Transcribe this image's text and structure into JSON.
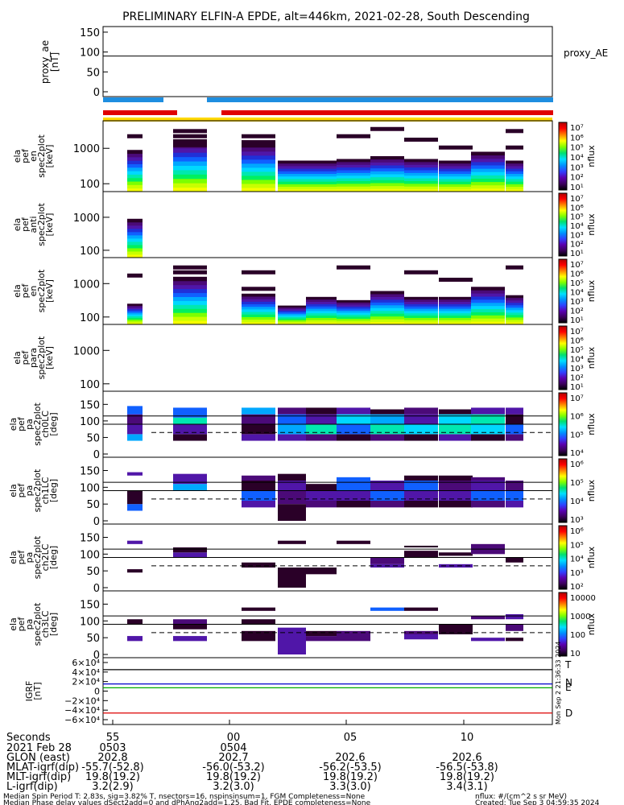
{
  "title": "PRELIMINARY ELFIN-A EPDE, alt=446km, 2021-02-28, South Descending",
  "panels": [
    {
      "id": "proxy_ae",
      "ylabel": [
        "proxy_ae",
        "[nT]"
      ],
      "ticks": [
        "150",
        "100",
        "50",
        "0"
      ],
      "legend": "proxy_AE"
    },
    {
      "id": "en_spec",
      "ylabel": [
        "ela",
        "pef",
        "en",
        "spec2plot",
        "[keV]"
      ],
      "ticks": [
        "1000",
        "100"
      ],
      "cbar_label": "nflux",
      "cbar_ticks": [
        "10⁷",
        "10⁶",
        "10⁵",
        "10⁴",
        "10³",
        "10²",
        "10¹"
      ]
    },
    {
      "id": "anti_spec",
      "ylabel": [
        "ela",
        "pef",
        "anti",
        "spec2plot",
        "[keV]"
      ],
      "ticks": [
        "1000",
        "100"
      ],
      "cbar_label": "nflux",
      "cbar_ticks": [
        "10⁷",
        "10⁶",
        "10⁵",
        "10⁴",
        "10³",
        "10²",
        "10¹"
      ]
    },
    {
      "id": "en2_spec",
      "ylabel": [
        "ela",
        "pef",
        "en",
        "spec2plot",
        "[keV]"
      ],
      "ticks": [
        "1000",
        "100"
      ],
      "cbar_label": "nflux",
      "cbar_ticks": [
        "10⁷",
        "10⁶",
        "10⁵",
        "10⁴",
        "10³",
        "10²",
        "10¹"
      ]
    },
    {
      "id": "para_spec",
      "ylabel": [
        "ela",
        "pef",
        "para",
        "spec2plot",
        "[keV]"
      ],
      "ticks": [
        "1000",
        "100"
      ],
      "cbar_label": "nflux",
      "cbar_ticks": [
        "10⁷",
        "10⁶",
        "10⁵",
        "10⁴",
        "10³",
        "10²",
        "10¹"
      ]
    },
    {
      "id": "ch0",
      "ylabel": [
        "ela",
        "pef",
        "pa",
        "spec2plot",
        "ch0LC",
        "[deg]"
      ],
      "ticks": [
        "150",
        "100",
        "50",
        "0"
      ],
      "cbar_label": "nflux",
      "cbar_ticks": [
        "10⁷",
        "10⁶",
        "10⁵",
        "10⁴"
      ]
    },
    {
      "id": "ch1",
      "ylabel": [
        "ela",
        "pef",
        "pa",
        "spec2plot",
        "ch1LC",
        "[deg]"
      ],
      "ticks": [
        "150",
        "100",
        "50",
        "0"
      ],
      "cbar_label": "nflux",
      "cbar_ticks": [
        "10⁶",
        "10⁵",
        "10⁴",
        "10³"
      ]
    },
    {
      "id": "ch2",
      "ylabel": [
        "ela",
        "pef",
        "pa",
        "spec2plot",
        "ch2LC",
        "[deg]"
      ],
      "ticks": [
        "150",
        "100",
        "50",
        "0"
      ],
      "cbar_label": "nflux",
      "cbar_ticks": [
        "10⁶",
        "10⁵",
        "10⁴",
        "10³",
        "10²"
      ]
    },
    {
      "id": "ch3",
      "ylabel": [
        "ela",
        "pef",
        "pa",
        "spec2plot",
        "ch3LC",
        "[deg]"
      ],
      "ticks": [
        "150",
        "100",
        "50",
        "0"
      ],
      "cbar_label": "nflux",
      "cbar_ticks": [
        "10000",
        "1000",
        "100",
        "10"
      ]
    },
    {
      "id": "igrf",
      "ylabel": [
        "IGRF",
        "[nT]"
      ],
      "ticks": [
        "6×10⁴",
        "4×10⁴",
        "2×10⁴",
        "0",
        "−2×10⁴",
        "−4×10⁴",
        "−6×10⁴"
      ],
      "legend_T": "T",
      "legend_N": "N",
      "legend_E": "E",
      "legend_D": "D"
    }
  ],
  "footer": {
    "rows": [
      {
        "label": "Seconds",
        "values": [
          "55",
          "00",
          "05",
          "10"
        ]
      },
      {
        "label": "2021 Feb 28",
        "values": [
          "0503",
          "0504",
          "",
          ""
        ]
      },
      {
        "label": "GLON (east)",
        "values": [
          "202.8",
          "202.7",
          "202.6",
          "202.6"
        ]
      },
      {
        "label": "MLAT-igrf(dip)",
        "values": [
          "-55.7(-52.8)",
          "-56.0(-53.2)",
          "-56.2(-53.5)",
          "-56.5(-53.8)"
        ]
      },
      {
        "label": "MLT-igrf(dip)",
        "values": [
          "19.8(19.2)",
          "19.8(19.2)",
          "19.8(19.2)",
          "19.8(19.2)"
        ]
      },
      {
        "label": "L-igrf(dip)",
        "values": [
          "3.2(2.9)",
          "3.2(3.0)",
          "3.3(3.0)",
          "3.4(3.1)"
        ]
      }
    ],
    "note1": "Median Spin Period T: 2.83s, sig=3.82% T, nsectors=16, nspinsinsum=1, FGM Completeness=None",
    "note1_right": "nflux: #/(cm^2 s sr MeV)",
    "note2": "Median Phase delay values dSect2add=0 and dPhAng2add=1.25, Bad Fit, EPDE completeness=None",
    "note2_right": "Created: Tue Sep  3 04:59:35 2024",
    "side_stamp": "Mon Sep  2 21:36:33 2024"
  },
  "chart_data": {
    "type": "heatmap",
    "x_time_seconds": [
      "55",
      "00",
      "05",
      "10"
    ],
    "proxy_ae_nT": 90,
    "pa_reference_lines_deg": {
      "solid": [
        115,
        90
      ],
      "dashed": 65
    },
    "energy_range_keV": [
      60,
      6000
    ],
    "pitch_angle_range_deg": [
      0,
      180
    ],
    "igrf_components": [
      {
        "name": "T",
        "value_nT": 45000,
        "color": "#000000"
      },
      {
        "name": "N",
        "value_nT": 15000,
        "color": "#0000cc"
      },
      {
        "name": "E",
        "value_nT": 7000,
        "color": "#00aa00"
      },
      {
        "name": "D",
        "value_nT": -46000,
        "color": "#dd0000"
      }
    ],
    "colors": {
      "blue_bar": "#1e8ee0",
      "red_bar": "#e00000",
      "yellow_bar": "#ffd800"
    }
  }
}
